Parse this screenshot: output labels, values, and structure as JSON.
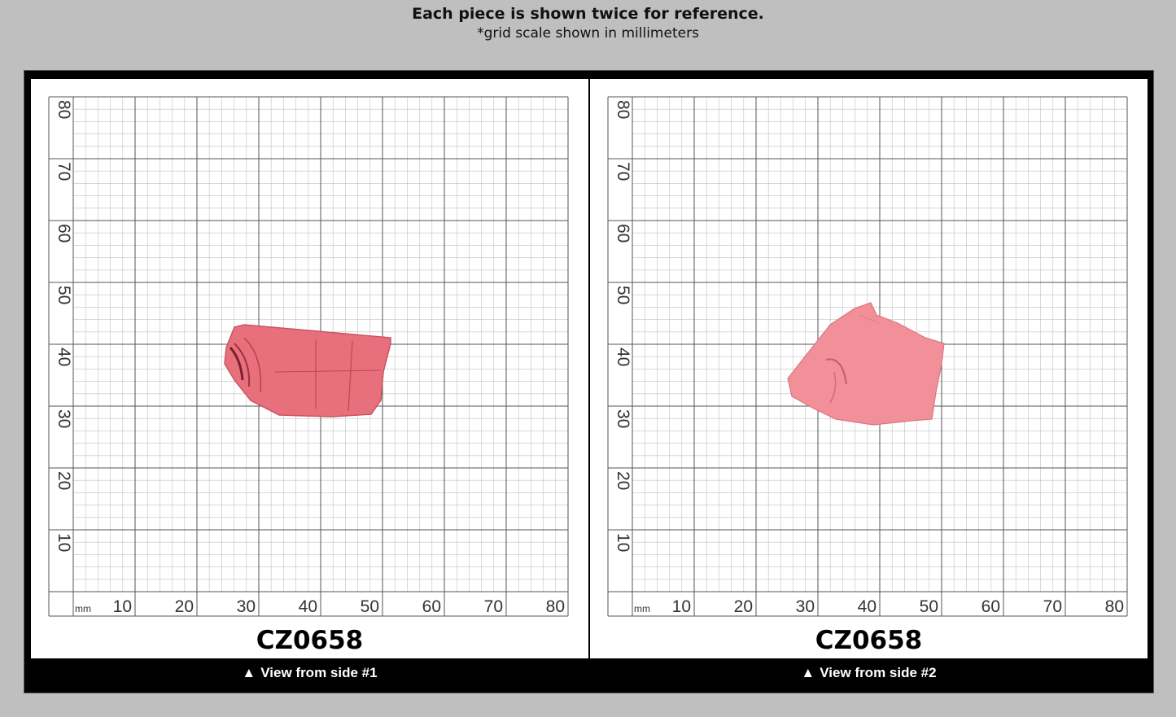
{
  "header": {
    "title": "Each piece is shown twice for reference.",
    "subtitle": "*grid scale shown in millimeters"
  },
  "panels": [
    {
      "code": "CZ0658",
      "caption": "View from side #1",
      "caption_icon": "up-triangle-icon",
      "grid_unit": "mm",
      "x_ticks": [
        "10",
        "20",
        "30",
        "40",
        "50",
        "60",
        "70",
        "80"
      ],
      "y_ticks": [
        "10",
        "20",
        "30",
        "40",
        "50",
        "60",
        "70",
        "80"
      ],
      "stone_color": "#e8707c"
    },
    {
      "code": "CZ0658",
      "caption": "View from side #2",
      "caption_icon": "up-triangle-icon",
      "grid_unit": "mm",
      "x_ticks": [
        "10",
        "20",
        "30",
        "40",
        "50",
        "60",
        "70",
        "80"
      ],
      "y_ticks": [
        "10",
        "20",
        "30",
        "40",
        "50",
        "60",
        "70",
        "80"
      ],
      "stone_color": "#f2909a"
    }
  ],
  "colors": {
    "background": "#bfbfbf",
    "frame": "#000000",
    "grid_major": "#555555",
    "grid_minor": "#c8c8c8"
  }
}
